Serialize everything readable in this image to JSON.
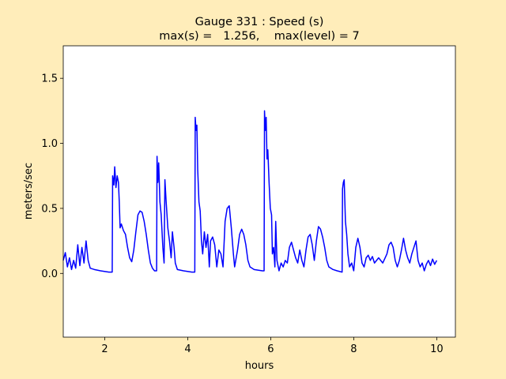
{
  "chart_data": {
    "type": "line",
    "title": "Gauge 331 : Speed (s)",
    "subtitle": "max(s) =   1.256,    max(level) = 7",
    "x_label": "hours",
    "y_label": "meters/sec",
    "xlim": [
      1.0,
      10.45
    ],
    "ylim": [
      -0.49,
      1.75
    ],
    "xticks": [
      2,
      4,
      6,
      8,
      10
    ],
    "yticks": [
      {
        "value": 0,
        "label": "0.0"
      },
      0.5,
      {
        "value": 1,
        "label": "1.0"
      },
      1.5
    ],
    "grid": false,
    "series": [
      {
        "name": "speed",
        "color": "#0000ff",
        "x": [
          1.0,
          1.05,
          1.1,
          1.15,
          1.2,
          1.25,
          1.3,
          1.35,
          1.4,
          1.45,
          1.5,
          1.55,
          1.6,
          1.65,
          1.75,
          1.9,
          2.1,
          2.18,
          2.19,
          2.22,
          2.24,
          2.27,
          2.3,
          2.33,
          2.35,
          2.37,
          2.4,
          2.45,
          2.5,
          2.55,
          2.6,
          2.65,
          2.7,
          2.75,
          2.8,
          2.85,
          2.9,
          2.95,
          3.0,
          3.05,
          3.1,
          3.15,
          3.2,
          3.25,
          3.26,
          3.28,
          3.3,
          3.33,
          3.36,
          3.4,
          3.43,
          3.45,
          3.48,
          3.52,
          3.56,
          3.6,
          3.63,
          3.67,
          3.7,
          3.75,
          3.9,
          4.1,
          4.17,
          4.18,
          4.2,
          4.22,
          4.24,
          4.27,
          4.3,
          4.33,
          4.36,
          4.4,
          4.44,
          4.48,
          4.52,
          4.55,
          4.6,
          4.65,
          4.7,
          4.75,
          4.8,
          4.85,
          4.9,
          4.95,
          5.0,
          5.05,
          5.1,
          5.13,
          5.2,
          5.25,
          5.3,
          5.35,
          5.4,
          5.45,
          5.5,
          5.6,
          5.8,
          5.84,
          5.85,
          5.87,
          5.89,
          5.91,
          5.93,
          5.96,
          5.99,
          6.02,
          6.04,
          6.07,
          6.1,
          6.12,
          6.15,
          6.2,
          6.25,
          6.3,
          6.35,
          6.4,
          6.45,
          6.5,
          6.55,
          6.6,
          6.65,
          6.7,
          6.75,
          6.8,
          6.85,
          6.9,
          6.95,
          7.0,
          7.05,
          7.1,
          7.15,
          7.2,
          7.25,
          7.3,
          7.35,
          7.4,
          7.5,
          7.6,
          7.72,
          7.73,
          7.75,
          7.77,
          7.8,
          7.83,
          7.86,
          7.9,
          7.95,
          8.0,
          8.05,
          8.1,
          8.15,
          8.2,
          8.25,
          8.3,
          8.35,
          8.4,
          8.45,
          8.5,
          8.6,
          8.7,
          8.8,
          8.85,
          8.9,
          8.95,
          9.0,
          9.05,
          9.1,
          9.15,
          9.2,
          9.25,
          9.3,
          9.35,
          9.4,
          9.45,
          9.5,
          9.55,
          9.6,
          9.65,
          9.7,
          9.75,
          9.8,
          9.85,
          9.9,
          9.95,
          10.0
        ],
        "values": [
          0.1,
          0.16,
          0.05,
          0.12,
          0.03,
          0.1,
          0.04,
          0.22,
          0.06,
          0.2,
          0.08,
          0.25,
          0.1,
          0.04,
          0.03,
          0.02,
          0.01,
          0.01,
          0.75,
          0.68,
          0.82,
          0.66,
          0.75,
          0.7,
          0.55,
          0.35,
          0.38,
          0.33,
          0.3,
          0.2,
          0.12,
          0.09,
          0.18,
          0.32,
          0.45,
          0.48,
          0.47,
          0.4,
          0.3,
          0.18,
          0.08,
          0.04,
          0.02,
          0.02,
          0.9,
          0.7,
          0.85,
          0.55,
          0.45,
          0.2,
          0.08,
          0.72,
          0.55,
          0.35,
          0.25,
          0.12,
          0.32,
          0.2,
          0.08,
          0.03,
          0.02,
          0.01,
          0.01,
          1.2,
          1.1,
          1.14,
          0.8,
          0.55,
          0.48,
          0.25,
          0.15,
          0.32,
          0.2,
          0.3,
          0.05,
          0.25,
          0.28,
          0.22,
          0.05,
          0.18,
          0.15,
          0.05,
          0.4,
          0.5,
          0.52,
          0.35,
          0.15,
          0.05,
          0.18,
          0.3,
          0.34,
          0.3,
          0.22,
          0.1,
          0.05,
          0.03,
          0.02,
          0.02,
          1.25,
          1.1,
          1.2,
          0.88,
          0.95,
          0.7,
          0.5,
          0.45,
          0.15,
          0.2,
          0.05,
          0.4,
          0.1,
          0.02,
          0.08,
          0.05,
          0.1,
          0.08,
          0.2,
          0.24,
          0.18,
          0.12,
          0.08,
          0.18,
          0.1,
          0.05,
          0.18,
          0.28,
          0.3,
          0.22,
          0.1,
          0.25,
          0.36,
          0.34,
          0.28,
          0.2,
          0.1,
          0.05,
          0.03,
          0.02,
          0.01,
          0.65,
          0.7,
          0.72,
          0.4,
          0.3,
          0.15,
          0.05,
          0.08,
          0.02,
          0.2,
          0.27,
          0.2,
          0.08,
          0.05,
          0.12,
          0.14,
          0.1,
          0.13,
          0.08,
          0.12,
          0.08,
          0.15,
          0.22,
          0.24,
          0.2,
          0.1,
          0.05,
          0.1,
          0.18,
          0.27,
          0.18,
          0.12,
          0.08,
          0.15,
          0.2,
          0.25,
          0.1,
          0.05,
          0.08,
          0.02,
          0.07,
          0.1,
          0.06,
          0.11,
          0.07,
          0.1
        ]
      }
    ]
  }
}
